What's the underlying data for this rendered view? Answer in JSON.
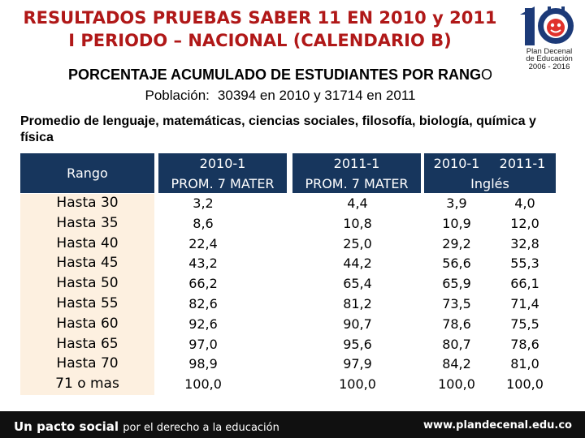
{
  "title": {
    "line1": "RESULTADOS PRUEBAS SABER 11 EN 2010 y 2011",
    "line2": "I PERIODO – NACIONAL (CALENDARIO B)"
  },
  "logo": {
    "line1": "Plan Decenal",
    "line2": "de Educación",
    "line3": "2006 - 2016"
  },
  "subtitle": {
    "main": "PORCENTAJE ACUMULADO DE ESTUDIANTES POR RANG",
    "last": "O"
  },
  "population": {
    "label": "Población:",
    "value": "30394 en 2010 y 31714 en 2011"
  },
  "promedio": "Promedio de lenguaje, matemáticas, ciencias sociales, filosofía, biología, química y física",
  "table": {
    "header": {
      "rango": "Rango",
      "col1_year": "2010-1",
      "col1_sub": "PROM. 7 MATER",
      "col2_year": "2011-1",
      "col2_sub": "PROM. 7 MATER",
      "col3_year": "2010-1",
      "col4_year": "2011-1",
      "ingles": "Inglés"
    },
    "rows": [
      {
        "rango": "Hasta 30",
        "c1": "3,2",
        "c2": "4,4",
        "c3": "3,9",
        "c4": "4,0"
      },
      {
        "rango": "Hasta 35",
        "c1": "8,6",
        "c2": "10,8",
        "c3": "10,9",
        "c4": "12,0"
      },
      {
        "rango": "Hasta 40",
        "c1": "22,4",
        "c2": "25,0",
        "c3": "29,2",
        "c4": "32,8"
      },
      {
        "rango": "Hasta 45",
        "c1": "43,2",
        "c2": "44,2",
        "c3": "56,6",
        "c4": "55,3"
      },
      {
        "rango": "Hasta 50",
        "c1": "66,2",
        "c2": "65,4",
        "c3": "65,9",
        "c4": "66,1"
      },
      {
        "rango": "Hasta 55",
        "c1": "82,6",
        "c2": "81,2",
        "c3": "73,5",
        "c4": "71,4"
      },
      {
        "rango": "Hasta 60",
        "c1": "92,6",
        "c2": "90,7",
        "c3": "78,6",
        "c4": "75,5"
      },
      {
        "rango": "Hasta 65",
        "c1": "97,0",
        "c2": "95,6",
        "c3": "80,7",
        "c4": "78,6"
      },
      {
        "rango": "Hasta 70",
        "c1": "98,9",
        "c2": "97,9",
        "c3": "84,2",
        "c4": "81,0"
      },
      {
        "rango": "71 o mas",
        "c1": "100,0",
        "c2": "100,0",
        "c3": "100,0",
        "c4": "100,0"
      }
    ]
  },
  "footer": {
    "left_bold": "Un pacto social",
    "left_rest": "por el derecho a la educación",
    "right": "www.plandecenal.edu.co"
  },
  "colors": {
    "title": "#b01818",
    "header_bg": "#17365d",
    "rango_bg": "#fdf0e0",
    "footer_bg": "#101010"
  }
}
